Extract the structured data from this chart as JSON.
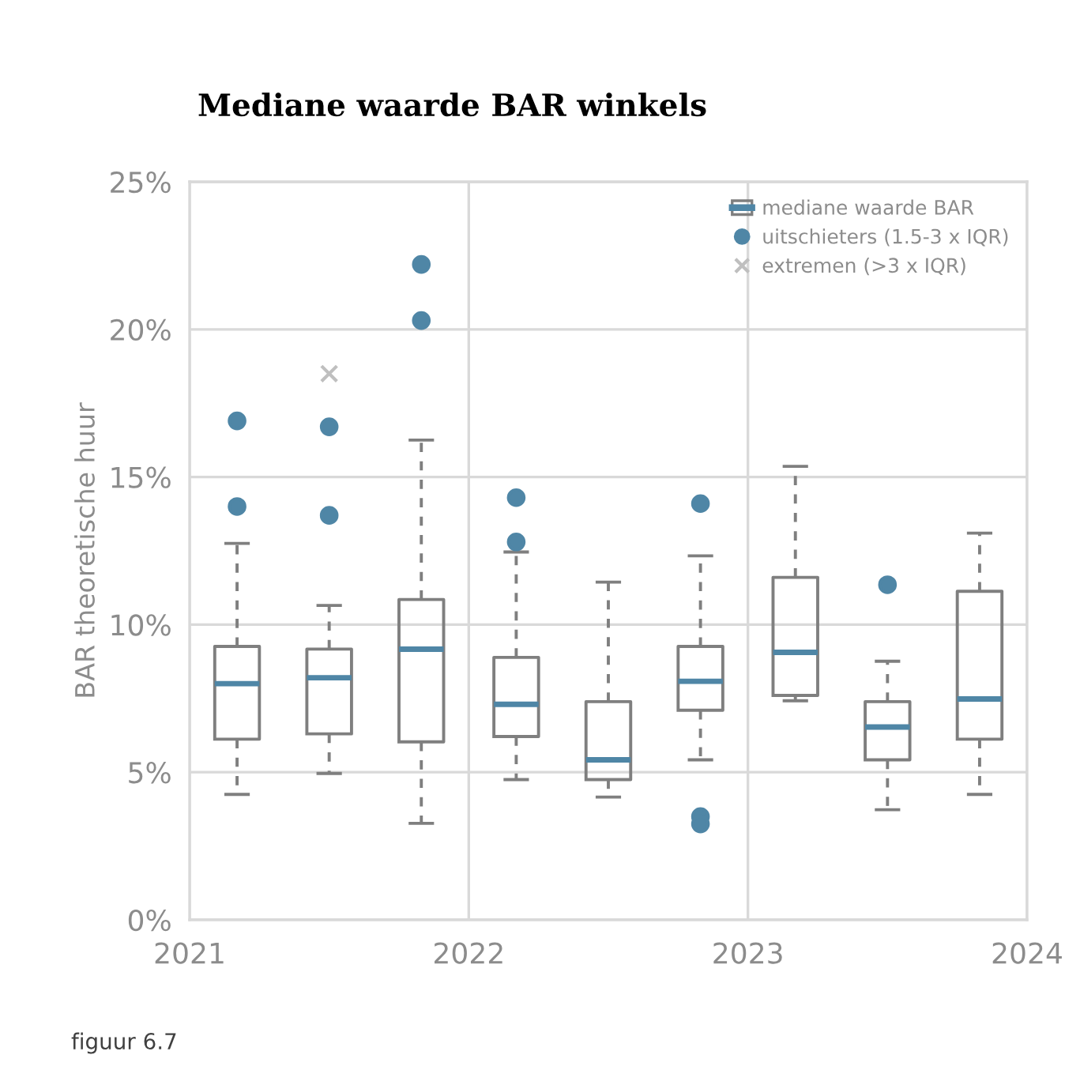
{
  "chart_data": {
    "type": "box",
    "title": "Mediane waarde BAR winkels",
    "ylabel": "BAR theoretische huur",
    "annotations": [
      "figuur 6.7"
    ],
    "xlim": [
      2021,
      2024
    ],
    "xticks": [
      2021,
      2022,
      2023,
      2024
    ],
    "ylim": [
      0,
      25
    ],
    "yticks": [
      {
        "value": 0,
        "label": "0%"
      },
      {
        "value": 5,
        "label": "5%"
      },
      {
        "value": 10,
        "label": "10%"
      },
      {
        "value": 15,
        "label": "15%"
      },
      {
        "value": 20,
        "label": "20%"
      },
      {
        "value": 25,
        "label": "25%"
      }
    ],
    "grid": true,
    "legend": "top right",
    "series": [
      {
        "type": "box",
        "name": "mediane waarde BAR",
        "color": "#7f7f7f",
        "x": [
          2021.17,
          2021.5,
          2021.83,
          2022.17,
          2022.5,
          2022.83,
          2023.17,
          2023.5,
          2023.83
        ],
        "boxes": [
          {
            "low": 4.25,
            "q1": 6.12,
            "median": 8.0,
            "q3": 9.26,
            "high": 12.75
          },
          {
            "low": 4.96,
            "q1": 6.3,
            "median": 8.2,
            "q3": 9.17,
            "high": 10.65
          },
          {
            "low": 3.27,
            "q1": 6.03,
            "median": 9.17,
            "q3": 10.85,
            "high": 16.25
          },
          {
            "low": 4.75,
            "q1": 6.21,
            "median": 7.3,
            "q3": 8.89,
            "high": 12.46
          },
          {
            "low": 4.16,
            "q1": 4.75,
            "median": 5.42,
            "q3": 7.39,
            "high": 11.44
          },
          {
            "low": 5.42,
            "q1": 7.1,
            "median": 8.08,
            "q3": 9.26,
            "high": 12.33
          },
          {
            "low": 7.42,
            "q1": 7.6,
            "median": 9.06,
            "q3": 11.6,
            "high": 15.36
          },
          {
            "low": 3.73,
            "q1": 5.42,
            "median": 6.53,
            "q3": 7.39,
            "high": 8.76
          },
          {
            "low": 4.25,
            "q1": 6.12,
            "median": 7.48,
            "q3": 11.13,
            "high": 13.1
          }
        ]
      },
      {
        "type": "scatter",
        "name": "uitschieters (1.5-3 x IQR)",
        "color": "#4f86a6",
        "marker": "circle",
        "x": [
          2021.17,
          2021.17,
          2021.5,
          2021.5,
          2021.83,
          2021.83,
          2022.17,
          2022.17,
          2022.83,
          2022.83,
          2022.83,
          2023.5
        ],
        "values": [
          16.9,
          14.0,
          16.7,
          13.7,
          22.2,
          20.3,
          14.3,
          12.8,
          14.1,
          3.5,
          3.25,
          11.35
        ]
      },
      {
        "type": "scatter",
        "name": "extremen (>3 x IQR)",
        "color": "#bfbfbf",
        "marker": "cross",
        "x": [
          2021.5
        ],
        "values": [
          18.5
        ]
      }
    ]
  }
}
